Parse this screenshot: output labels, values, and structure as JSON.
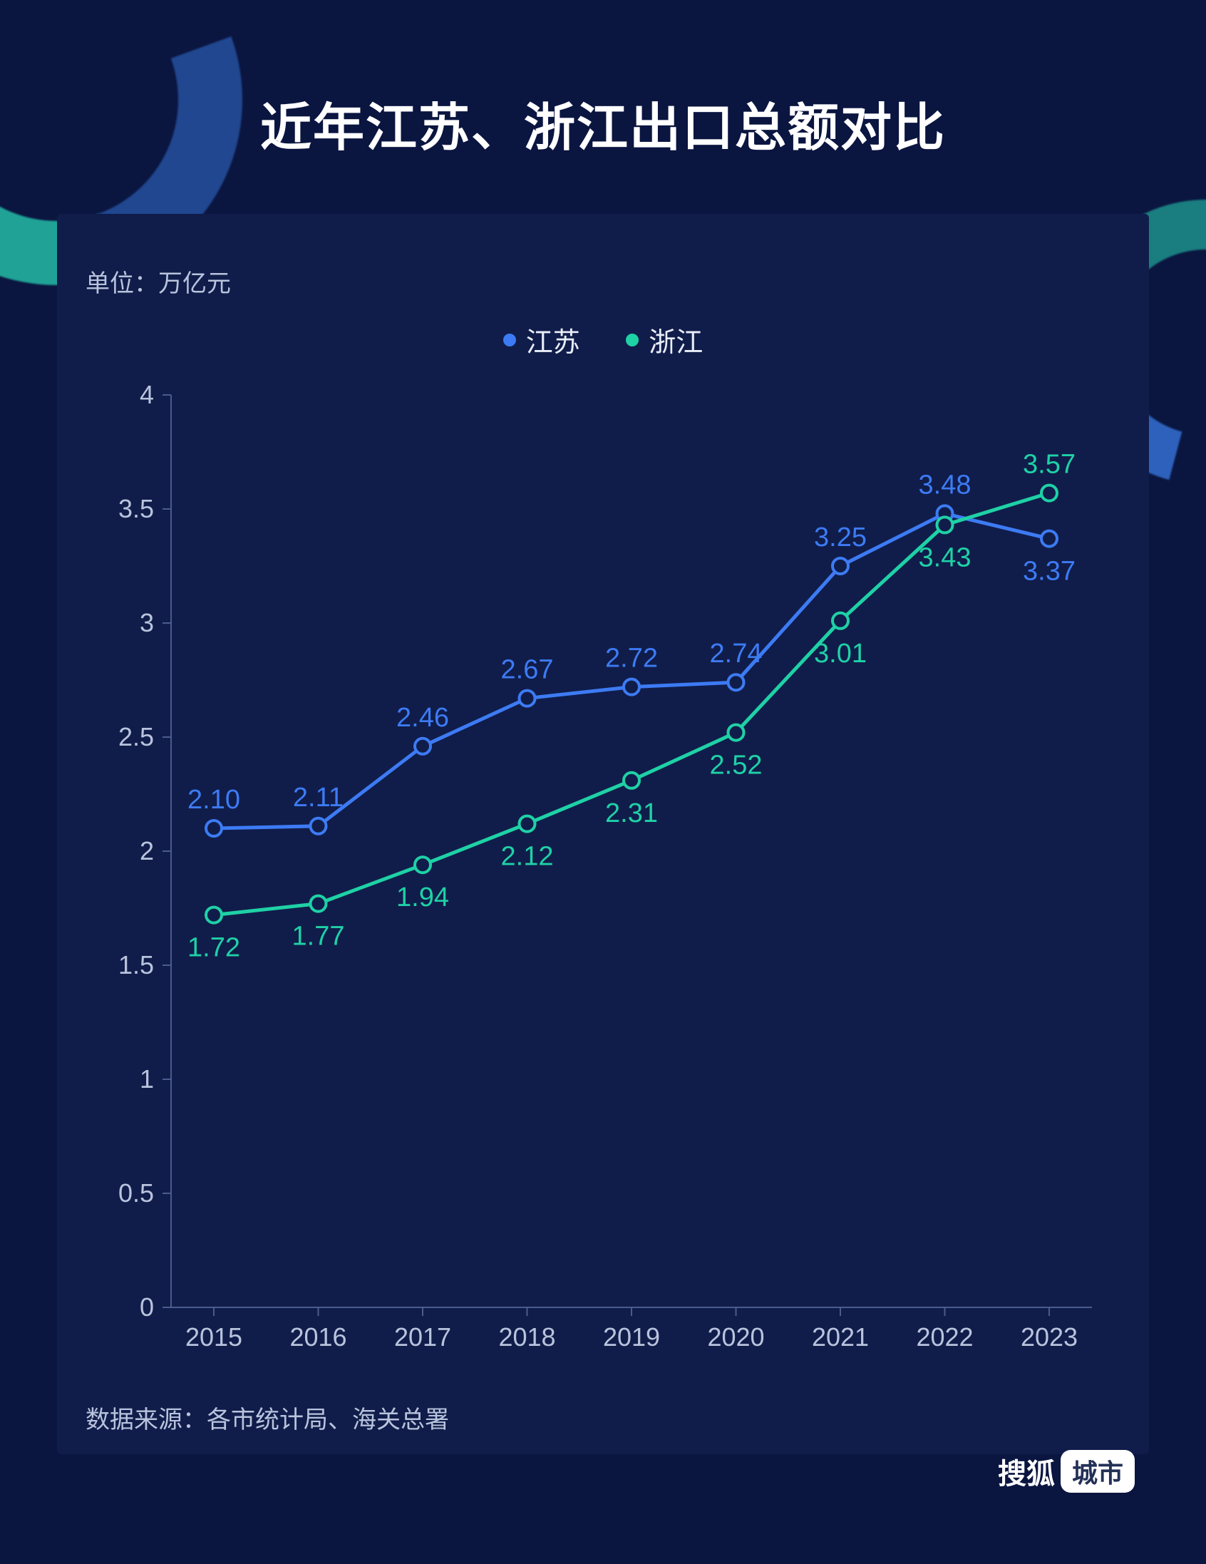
{
  "background_color": "#0a1540",
  "panel_color": "#101d4a",
  "title": "近年江苏、浙江出口总额对比",
  "title_color": "#ffffff",
  "title_fontsize": 72,
  "unit_label": "单位：万亿元",
  "source_label": "数据来源：各市统计局、海关总署",
  "brand_text": "搜狐",
  "brand_tag": "城市",
  "chart": {
    "type": "line",
    "categories": [
      "2015",
      "2016",
      "2017",
      "2018",
      "2019",
      "2020",
      "2021",
      "2022",
      "2023"
    ],
    "ylim": [
      0,
      4
    ],
    "ytick_step": 0.5,
    "y_ticks": [
      "0",
      "0.5",
      "1",
      "1.5",
      "2",
      "2.5",
      "3",
      "3.5",
      "4"
    ],
    "axis_color": "#4a5b8f",
    "tick_label_color": "#b9c3dd",
    "tick_fontsize": 36,
    "data_label_fontsize": 38,
    "line_width": 5,
    "marker_radius": 11,
    "marker_inner_radius": 6,
    "marker_fill": "#101d4a",
    "series": [
      {
        "name": "江苏",
        "color": "#3d7bf4",
        "values": [
          2.1,
          2.11,
          2.46,
          2.67,
          2.72,
          2.74,
          3.25,
          3.48,
          3.37
        ],
        "labels": [
          "2.10",
          "2.11",
          "2.46",
          "2.67",
          "2.72",
          "2.74",
          "3.25",
          "3.48",
          "3.37"
        ],
        "label_side": [
          "above",
          "above",
          "above",
          "above",
          "above",
          "above",
          "above",
          "above",
          "below"
        ]
      },
      {
        "name": "浙江",
        "color": "#1fd1a6",
        "values": [
          1.72,
          1.77,
          1.94,
          2.12,
          2.31,
          2.52,
          3.01,
          3.43,
          3.57
        ],
        "labels": [
          "1.72",
          "1.77",
          "1.94",
          "2.12",
          "2.31",
          "2.52",
          "3.01",
          "3.43",
          "3.57"
        ],
        "label_side": [
          "below",
          "below",
          "below",
          "below",
          "below",
          "below",
          "below",
          "below",
          "above"
        ]
      }
    ]
  }
}
